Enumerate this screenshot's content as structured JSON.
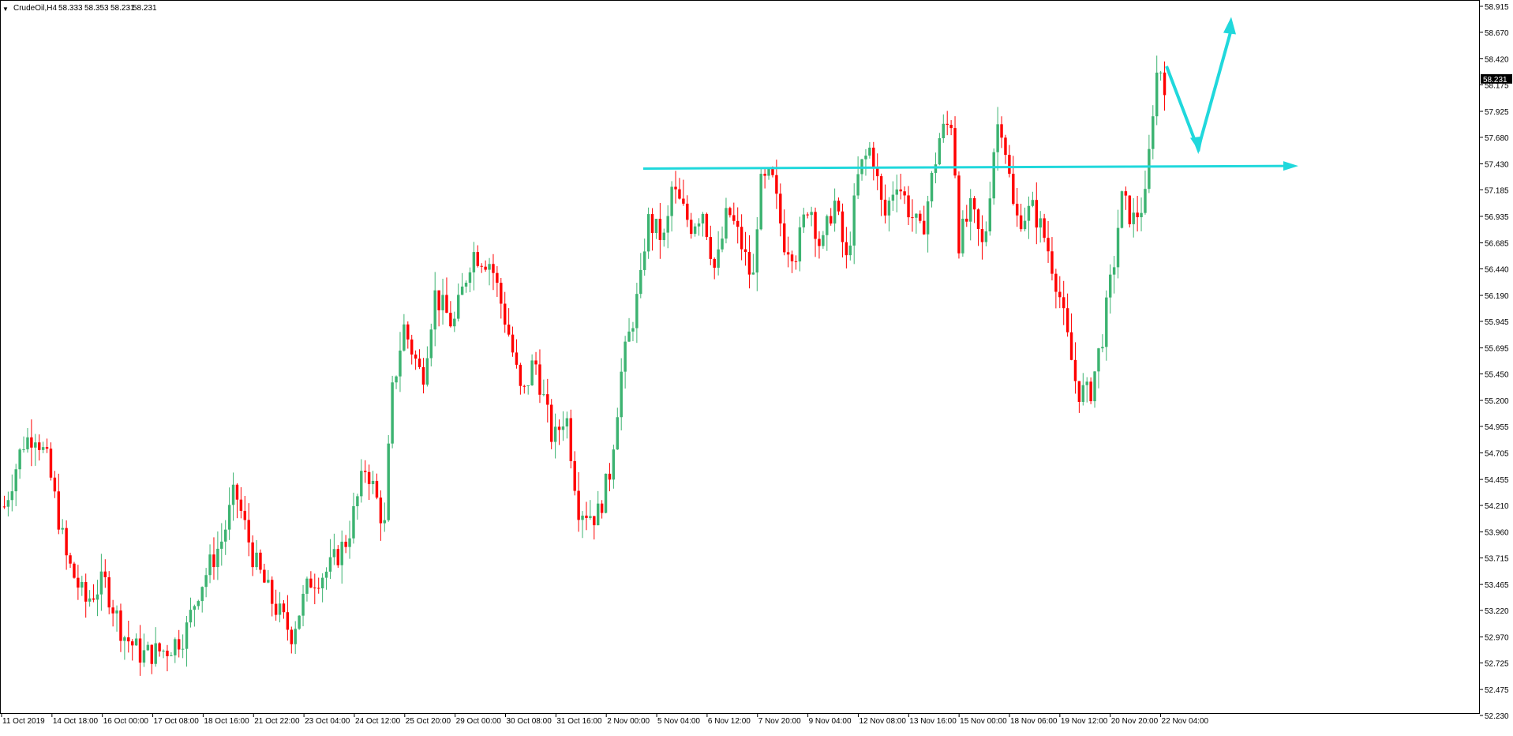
{
  "header": {
    "menu_glyph": "▼",
    "symbol": "CrudeOil,H4",
    "open": "58.333",
    "high": "58.353",
    "low": "58.231",
    "close": "58.231"
  },
  "colors": {
    "up": "#3cb371",
    "down": "#ff0000",
    "wick": "#3cb371",
    "annotation": "#20d8dc",
    "price_tag_bg": "#000000",
    "price_tag_text": "#ffffff",
    "background": "#ffffff",
    "axis": "#000000"
  },
  "price_tag": "58.231",
  "chart_data": {
    "type": "candlestick",
    "symbol": "CrudeOil",
    "timeframe": "H4",
    "ylim": [
      52.23,
      58.915
    ],
    "y_ticks": [
      "58.915",
      "58.670",
      "58.420",
      "58.175",
      "57.925",
      "57.680",
      "57.430",
      "57.185",
      "56.935",
      "56.685",
      "56.440",
      "56.190",
      "55.945",
      "55.695",
      "55.450",
      "55.200",
      "54.955",
      "54.705",
      "54.455",
      "54.210",
      "53.960",
      "53.715",
      "53.465",
      "53.220",
      "52.970",
      "52.725",
      "52.475",
      "52.230"
    ],
    "x_labels": [
      "11 Oct 2019",
      "14 Oct 18:00",
      "16 Oct 00:00",
      "17 Oct 08:00",
      "18 Oct 16:00",
      "21 Oct 22:00",
      "23 Oct 04:00",
      "24 Oct 12:00",
      "25 Oct 20:00",
      "29 Oct 00:00",
      "30 Oct 08:00",
      "31 Oct 16:00",
      "2 Nov 00:00",
      "5 Nov 04:00",
      "6 Nov 12:00",
      "7 Nov 20:00",
      "9 Nov 04:00",
      "12 Nov 08:00",
      "13 Nov 16:00",
      "15 Nov 00:00",
      "18 Nov 06:00",
      "19 Nov 12:00",
      "20 Nov 20:00",
      "22 Nov 04:00"
    ],
    "grid": false,
    "legend": "none",
    "annotations": [
      {
        "type": "horizontal-arrow",
        "label": "",
        "price_start": 57.43,
        "price_end": 57.47
      },
      {
        "type": "projection-zigzag",
        "label": "",
        "prices": [
          58.35,
          57.57,
          58.8
        ]
      }
    ]
  }
}
